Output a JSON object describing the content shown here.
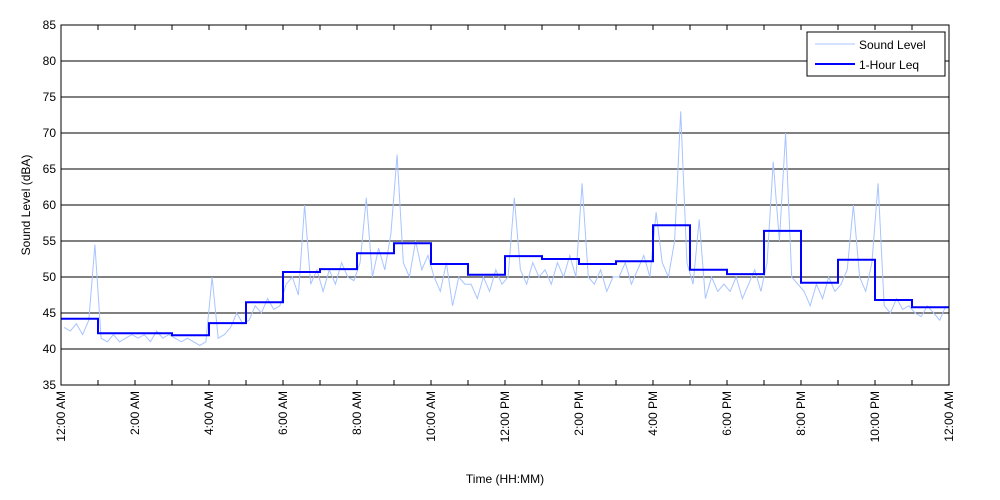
{
  "chart_data": {
    "type": "line",
    "title": "",
    "xlabel": "Time (HH:MM)",
    "ylabel": "Sound Level (dBA)",
    "ylim": [
      35,
      85
    ],
    "yticks": [
      35,
      40,
      45,
      50,
      55,
      60,
      65,
      70,
      75,
      80,
      85
    ],
    "xlim_hours": [
      0,
      24
    ],
    "xtick_hours": [
      0,
      2,
      4,
      6,
      8,
      10,
      12,
      14,
      16,
      18,
      20,
      22,
      24
    ],
    "xtick_labels": [
      "12:00 AM",
      "2:00 AM",
      "4:00 AM",
      "6:00 AM",
      "8:00 AM",
      "10:00 AM",
      "12:00 PM",
      "2:00 PM",
      "4:00 PM",
      "6:00 PM",
      "8:00 PM",
      "10:00 PM",
      "12:00 AM"
    ],
    "grid": "horizontal",
    "legend_position": "top-right",
    "series": [
      {
        "name": "Sound Level",
        "color": "#a8c4ff",
        "interval_minutes": 10,
        "values": [
          43,
          42.5,
          43.5,
          42,
          44,
          54.5,
          41.5,
          41,
          42,
          41,
          41.5,
          42,
          41.5,
          42,
          41,
          42.5,
          41.5,
          42,
          41.5,
          41,
          41.5,
          41,
          40.5,
          41,
          50,
          41.5,
          42,
          43,
          45,
          43.5,
          44,
          46,
          45,
          47,
          45.5,
          46,
          49,
          50,
          47.5,
          60,
          49,
          51,
          48,
          51,
          49,
          52,
          50,
          49.5,
          52,
          61,
          50,
          54,
          51,
          56,
          67,
          52,
          50,
          55,
          51,
          53,
          50,
          48,
          52,
          46,
          50,
          49,
          49,
          47,
          50,
          48,
          51,
          49,
          50,
          61,
          51,
          49,
          52,
          50,
          51,
          49,
          52,
          50,
          53,
          50,
          63,
          50,
          49,
          51,
          48,
          50,
          50,
          52,
          49,
          51,
          53,
          50,
          59,
          52,
          50,
          55,
          73,
          52,
          49,
          58,
          47,
          50,
          48,
          49,
          48,
          50,
          47,
          49,
          51,
          48,
          52,
          66,
          55,
          70,
          50,
          49,
          48,
          46,
          49,
          47,
          50,
          48,
          49,
          51,
          60,
          50,
          48,
          52,
          63,
          46,
          45,
          47,
          45.5,
          46,
          45,
          44.5,
          46,
          45,
          44,
          46
        ]
      },
      {
        "name": "1-Hour Leq",
        "color": "#0000ff",
        "interval_minutes": 60,
        "values": [
          44.2,
          42.2,
          42.2,
          41.9,
          43.6,
          46.5,
          50.7,
          51.1,
          53.3,
          54.7,
          51.8,
          50.3,
          52.9,
          52.5,
          51.8,
          52.2,
          57.2,
          51.0,
          50.4,
          56.4,
          49.2,
          52.4,
          46.8,
          45.8
        ]
      }
    ]
  }
}
